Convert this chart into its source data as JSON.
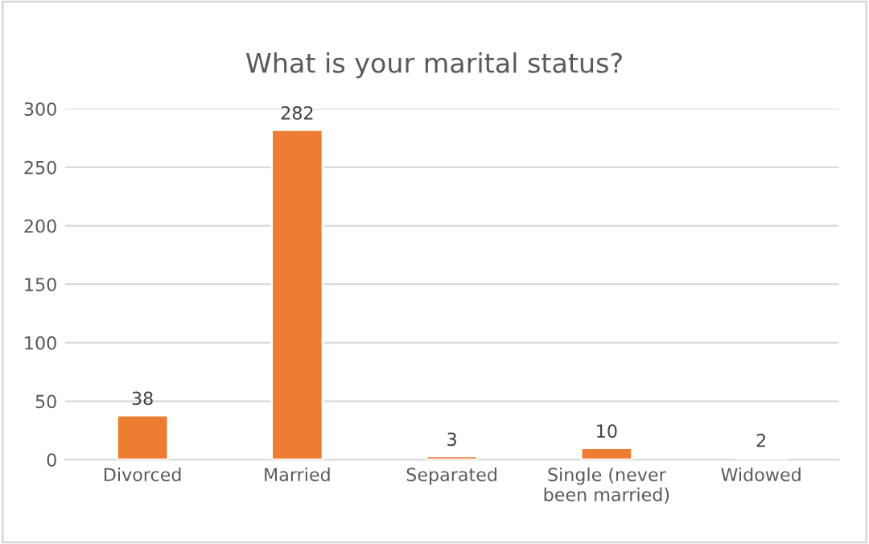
{
  "chart_data": {
    "type": "bar",
    "title": "What is your marital status?",
    "categories": [
      "Divorced",
      "Married",
      "Separated",
      "Single (never\nbeen married)",
      "Widowed"
    ],
    "values": [
      38,
      282,
      3,
      10,
      2
    ],
    "color": "#ed7d31",
    "ylim": [
      0,
      300
    ],
    "yticks": [
      0,
      50,
      100,
      150,
      200,
      250,
      300
    ],
    "grid": "y",
    "data_labels": true
  }
}
